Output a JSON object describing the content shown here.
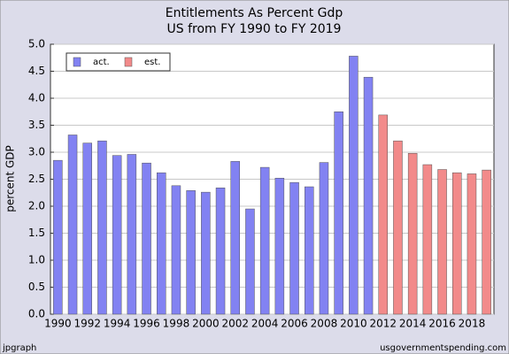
{
  "chart_data": {
    "type": "bar",
    "title": "Entitlements As Percent Gdp",
    "subtitle": "US from FY 1990 to FY 2019",
    "y_label": "percent GDP",
    "footer_left": "jpgraph",
    "footer_right": "usgovernmentspending.com",
    "categories": [
      "1990",
      null,
      "1992",
      null,
      "1994",
      null,
      "1996",
      null,
      "1998",
      null,
      "2000",
      null,
      "2002",
      null,
      "2004",
      null,
      "2006",
      null,
      "2008",
      null,
      "2010",
      null,
      "2012",
      null,
      "2014",
      null,
      "2016",
      null,
      "2018",
      null
    ],
    "series": [
      {
        "name": "act.",
        "color": "#8282f2",
        "values": [
          2.85,
          3.32,
          3.17,
          3.21,
          2.94,
          2.96,
          2.8,
          2.62,
          2.38,
          2.29,
          2.26,
          2.34,
          2.83,
          1.95,
          2.72,
          2.52,
          2.44,
          2.36,
          2.81,
          3.75,
          4.78,
          4.39,
          null,
          null,
          null,
          null,
          null,
          null,
          null,
          null
        ]
      },
      {
        "name": "est.",
        "color": "#f28a8a",
        "values": [
          null,
          null,
          null,
          null,
          null,
          null,
          null,
          null,
          null,
          null,
          null,
          null,
          null,
          null,
          null,
          null,
          null,
          null,
          null,
          null,
          null,
          null,
          3.69,
          3.21,
          2.98,
          2.77,
          2.68,
          2.62,
          2.6,
          2.67
        ]
      }
    ],
    "ylim": [
      0,
      5
    ],
    "yticks": [
      {
        "value": 0,
        "label": "0.0"
      },
      0.5,
      {
        "value": 1,
        "label": "1.0"
      },
      1.5,
      {
        "value": 2,
        "label": "2.0"
      },
      2.5,
      {
        "value": 3,
        "label": "3.0"
      },
      3.5,
      {
        "value": 4,
        "label": "4.0"
      },
      4.5,
      {
        "value": 5,
        "label": "5.0"
      }
    ],
    "grid": true,
    "legend": "upper left"
  }
}
